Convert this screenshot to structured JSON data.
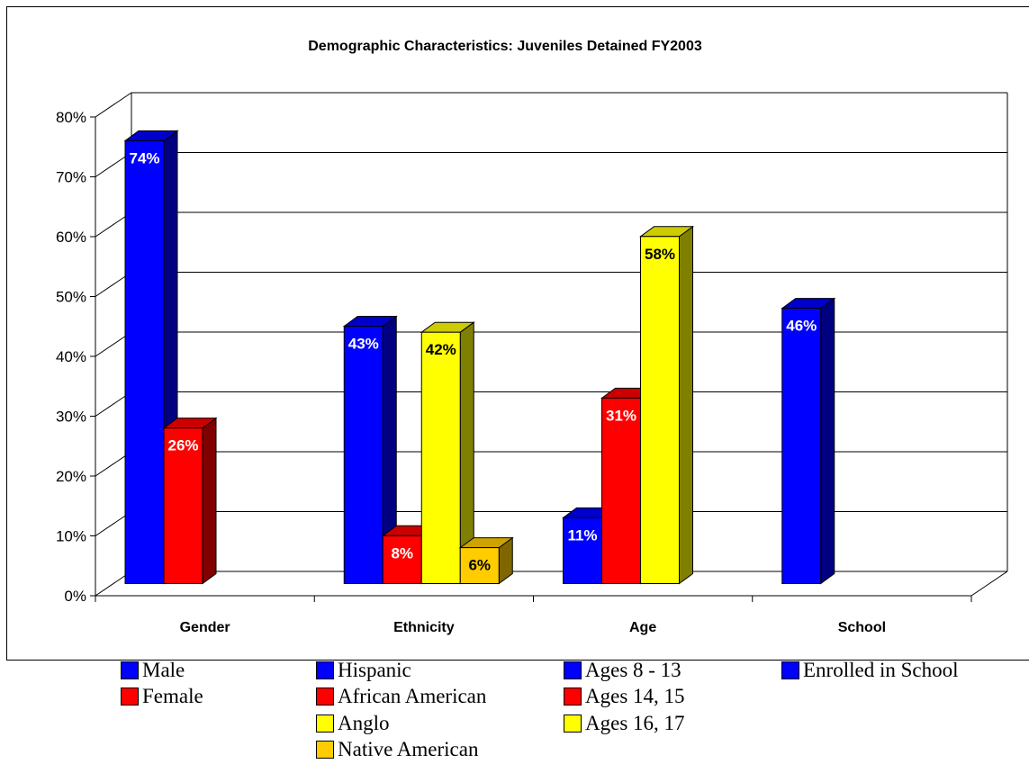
{
  "chart_data": {
    "type": "bar",
    "title": "Demographic Characteristics:  Juveniles Detained FY2003",
    "xlabel": "",
    "ylabel": "",
    "ylim": [
      0,
      80
    ],
    "yticks": [
      "0%",
      "10%",
      "20%",
      "30%",
      "40%",
      "50%",
      "60%",
      "70%",
      "80%"
    ],
    "grid": true,
    "legend_position": "bottom",
    "groups": [
      {
        "label": "Gender",
        "bars": [
          {
            "series": "Male",
            "value": 74,
            "label": "74%",
            "color": "#0000ff"
          },
          {
            "series": "Female",
            "value": 26,
            "label": "26%",
            "color": "#ff0000"
          }
        ]
      },
      {
        "label": "Ethnicity",
        "bars": [
          {
            "series": "Hispanic",
            "value": 43,
            "label": "43%",
            "color": "#0000ff"
          },
          {
            "series": "African American",
            "value": 8,
            "label": "8%",
            "color": "#ff0000"
          },
          {
            "series": "Anglo",
            "value": 42,
            "label": "42%",
            "color": "#ffff00"
          },
          {
            "series": "Native American",
            "value": 6,
            "label": "6%",
            "color": "#ffcc00"
          }
        ]
      },
      {
        "label": "Age",
        "bars": [
          {
            "series": "Ages 8 - 13",
            "value": 11,
            "label": "11%",
            "color": "#0000ff"
          },
          {
            "series": "Ages 14, 15",
            "value": 31,
            "label": "31%",
            "color": "#ff0000"
          },
          {
            "series": "Ages 16, 17",
            "value": 58,
            "label": "58%",
            "color": "#ffff00"
          }
        ]
      },
      {
        "label": "School",
        "bars": [
          {
            "series": "Enrolled in School",
            "value": 46,
            "label": "46%",
            "color": "#0000ff"
          }
        ]
      }
    ],
    "legend": [
      {
        "name": "Male",
        "color": "#0000ff",
        "col": 0,
        "row": 0
      },
      {
        "name": "Female",
        "color": "#ff0000",
        "col": 0,
        "row": 1
      },
      {
        "name": "Hispanic",
        "color": "#0000ff",
        "col": 1,
        "row": 0
      },
      {
        "name": "African American",
        "color": "#ff0000",
        "col": 1,
        "row": 1
      },
      {
        "name": "Anglo",
        "color": "#ffff00",
        "col": 1,
        "row": 2
      },
      {
        "name": "Native American",
        "color": "#ffcc00",
        "col": 1,
        "row": 3
      },
      {
        "name": "Ages 8 - 13",
        "color": "#0000ff",
        "col": 2,
        "row": 0
      },
      {
        "name": "Ages 14, 15",
        "color": "#ff0000",
        "col": 2,
        "row": 1
      },
      {
        "name": "Ages 16, 17",
        "color": "#ffff00",
        "col": 2,
        "row": 2
      },
      {
        "name": "Enrolled in School",
        "color": "#0000ff",
        "col": 3,
        "row": 0
      }
    ]
  }
}
